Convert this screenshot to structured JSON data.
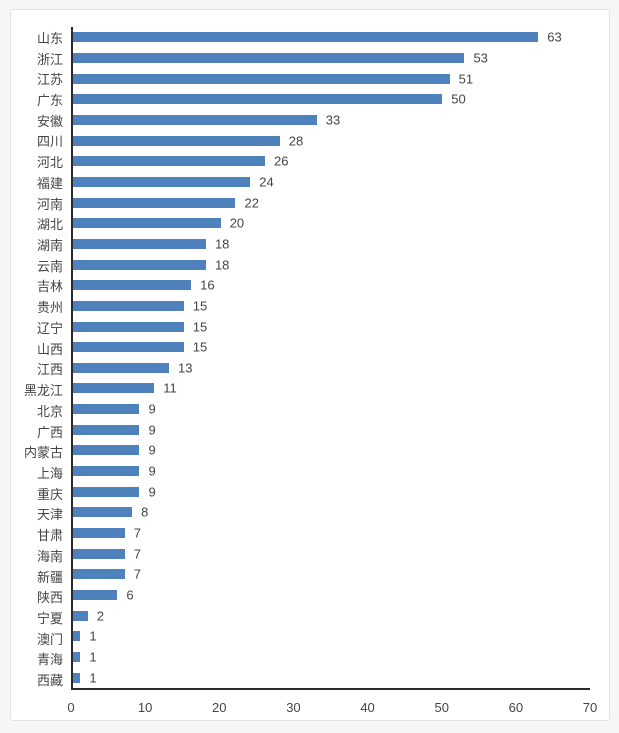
{
  "chart_data": {
    "type": "bar",
    "orientation": "horizontal",
    "title": "",
    "xlabel": "",
    "ylabel": "",
    "categories": [
      "山东",
      "浙江",
      "江苏",
      "广东",
      "安徽",
      "四川",
      "河北",
      "福建",
      "河南",
      "湖北",
      "湖南",
      "云南",
      "吉林",
      "贵州",
      "辽宁",
      "山西",
      "江西",
      "黑龙江",
      "北京",
      "广西",
      "内蒙古",
      "上海",
      "重庆",
      "天津",
      "甘肃",
      "海南",
      "新疆",
      "陕西",
      "宁夏",
      "澳门",
      "青海",
      "西藏"
    ],
    "values": [
      63,
      53,
      51,
      50,
      33,
      28,
      26,
      24,
      22,
      20,
      18,
      18,
      16,
      15,
      15,
      15,
      13,
      11,
      9,
      9,
      9,
      9,
      9,
      8,
      7,
      7,
      7,
      6,
      2,
      1,
      1,
      1
    ],
    "xlim": [
      0,
      70
    ],
    "x_ticks": [
      0,
      10,
      20,
      30,
      40,
      50,
      60,
      70
    ],
    "grid": false,
    "legend": null,
    "data_labels": true
  },
  "colors": {
    "bar": "#4f81bd",
    "axis": "#2a2a2a",
    "text": "#454545",
    "panel_background": "#ffffff",
    "panel_border": "#e3e3e3",
    "page_background": "#f6f6f6"
  }
}
